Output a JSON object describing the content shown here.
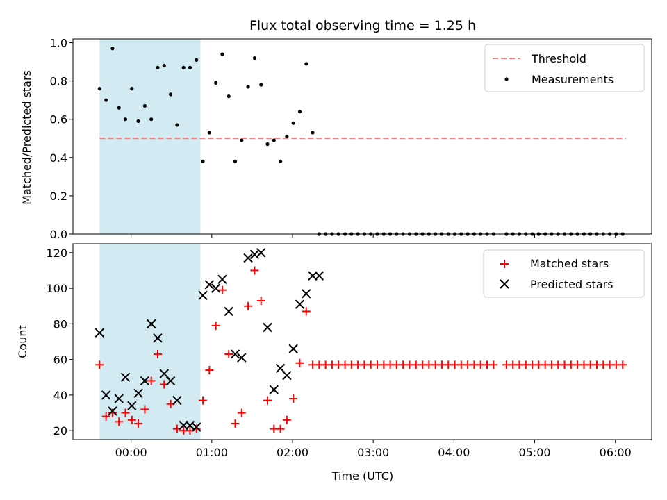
{
  "chart_data": [
    {
      "type": "scatter",
      "title": "Flux total observing time = 1.25 h",
      "xlabel": "",
      "ylabel": "Matched/Predicted stars",
      "xlim": [
        -0.72,
        6.45
      ],
      "ylim": [
        0.0,
        1.02
      ],
      "xticks": [
        0,
        1,
        2,
        3,
        4,
        5,
        6
      ],
      "xtick_labels": [
        "",
        "",
        "",
        "",
        "",
        "",
        ""
      ],
      "yticks": [
        0.0,
        0.2,
        0.4,
        0.6,
        0.8,
        1.0
      ],
      "ytick_labels": [
        "0.0",
        "0.2",
        "0.4",
        "0.6",
        "0.8",
        "1.0"
      ],
      "shaded_span": [
        -0.39,
        0.86
      ],
      "threshold": {
        "label": "Threshold",
        "y": 0.5,
        "x_range": [
          -0.39,
          6.13
        ],
        "color": "#ff7f7f"
      },
      "series": [
        {
          "name": "Measurements",
          "color": "#000000",
          "x": [
            -0.39,
            -0.31,
            -0.23,
            -0.15,
            -0.07,
            0.01,
            0.09,
            0.17,
            0.25,
            0.33,
            0.41,
            0.49,
            0.57,
            0.65,
            0.73,
            0.81,
            0.89,
            0.97,
            1.05,
            1.13,
            1.21,
            1.29,
            1.37,
            1.45,
            1.53,
            1.61,
            1.69,
            1.77,
            1.85,
            1.93,
            2.01,
            2.09,
            2.17,
            2.25,
            2.33,
            2.41,
            2.49,
            2.57,
            2.65,
            2.73,
            2.81,
            2.89,
            2.97,
            3.05,
            3.13,
            3.21,
            3.29,
            3.37,
            3.45,
            3.53,
            3.61,
            3.69,
            3.77,
            3.85,
            3.93,
            4.01,
            4.09,
            4.17,
            4.25,
            4.33,
            4.41,
            4.49,
            4.65,
            4.73,
            4.81,
            4.89,
            4.97,
            5.05,
            5.13,
            5.21,
            5.29,
            5.37,
            5.45,
            5.53,
            5.61,
            5.69,
            5.77,
            5.85,
            5.93,
            6.01,
            6.09
          ],
          "y": [
            0.76,
            0.7,
            0.97,
            0.66,
            0.6,
            0.76,
            0.59,
            0.67,
            0.6,
            0.87,
            0.88,
            0.73,
            0.57,
            0.87,
            0.87,
            0.91,
            0.38,
            0.53,
            0.79,
            0.94,
            0.72,
            0.38,
            0.49,
            0.77,
            0.92,
            0.78,
            0.47,
            0.49,
            0.38,
            0.51,
            0.58,
            0.64,
            0.89,
            0.53,
            0.0,
            0.0,
            0.0,
            0.0,
            0.0,
            0.0,
            0.0,
            0.0,
            0.0,
            0.0,
            0.0,
            0.0,
            0.0,
            0.0,
            0.0,
            0.0,
            0.0,
            0.0,
            0.0,
            0.0,
            0.0,
            0.0,
            0.0,
            0.0,
            0.0,
            0.0,
            0.0,
            0.0,
            0.0,
            0.0,
            0.0,
            0.0,
            0.0,
            0.0,
            0.0,
            0.0,
            0.0,
            0.0,
            0.0,
            0.0,
            0.0,
            0.0,
            0.0,
            0.0,
            0.0,
            0.0,
            0.0
          ]
        }
      ],
      "legend": {
        "position": "top-right",
        "entries": [
          "Threshold",
          "Measurements"
        ]
      }
    },
    {
      "type": "scatter",
      "title": "",
      "xlabel": "Time (UTC)",
      "ylabel": "Count",
      "xlim": [
        -0.72,
        6.45
      ],
      "ylim": [
        15,
        125
      ],
      "xticks": [
        0,
        1,
        2,
        3,
        4,
        5,
        6
      ],
      "xtick_labels": [
        "00:00",
        "01:00",
        "02:00",
        "03:00",
        "04:00",
        "05:00",
        "06:00"
      ],
      "yticks": [
        20,
        40,
        60,
        80,
        100,
        120
      ],
      "ytick_labels": [
        "20",
        "40",
        "60",
        "80",
        "100",
        "120"
      ],
      "shaded_span": [
        -0.39,
        0.86
      ],
      "series": [
        {
          "name": "Matched stars",
          "marker": "plus",
          "color": "#ff0000",
          "x": [
            -0.39,
            -0.31,
            -0.23,
            -0.15,
            -0.07,
            0.01,
            0.09,
            0.17,
            0.25,
            0.33,
            0.41,
            0.49,
            0.57,
            0.65,
            0.73,
            0.81,
            0.89,
            0.97,
            1.05,
            1.13,
            1.21,
            1.29,
            1.37,
            1.45,
            1.53,
            1.61,
            1.69,
            1.77,
            1.85,
            1.93,
            2.01,
            2.09,
            2.17,
            2.25,
            2.33,
            2.41,
            2.49,
            2.57,
            2.65,
            2.73,
            2.81,
            2.89,
            2.97,
            3.05,
            3.13,
            3.21,
            3.29,
            3.37,
            3.45,
            3.53,
            3.61,
            3.69,
            3.77,
            3.85,
            3.93,
            4.01,
            4.09,
            4.17,
            4.25,
            4.33,
            4.41,
            4.49,
            4.65,
            4.73,
            4.81,
            4.89,
            4.97,
            5.05,
            5.13,
            5.21,
            5.29,
            5.37,
            5.45,
            5.53,
            5.61,
            5.69,
            5.77,
            5.85,
            5.93,
            6.01,
            6.09
          ],
          "y": [
            57,
            28,
            30,
            25,
            30,
            26,
            24,
            32,
            48,
            63,
            46,
            35,
            21,
            20,
            20,
            21,
            37,
            54,
            79,
            99,
            63,
            24,
            30,
            90,
            110,
            93,
            37,
            21,
            21,
            26,
            38,
            58,
            87,
            57,
            57,
            57,
            57,
            57,
            57,
            57,
            57,
            57,
            57,
            57,
            57,
            57,
            57,
            57,
            57,
            57,
            57,
            57,
            57,
            57,
            57,
            57,
            57,
            57,
            57,
            57,
            57,
            57,
            57,
            57,
            57,
            57,
            57,
            57,
            57,
            57,
            57,
            57,
            57,
            57,
            57,
            57,
            57,
            57,
            57,
            57,
            57
          ]
        },
        {
          "name": "Predicted stars",
          "marker": "x",
          "color": "#000000",
          "x": [
            -0.39,
            -0.31,
            -0.23,
            -0.15,
            -0.07,
            0.01,
            0.09,
            0.17,
            0.25,
            0.33,
            0.41,
            0.49,
            0.57,
            0.65,
            0.73,
            0.81,
            0.89,
            0.97,
            1.05,
            1.13,
            1.21,
            1.29,
            1.37,
            1.45,
            1.53,
            1.61,
            1.69,
            1.77,
            1.85,
            1.93,
            2.01,
            2.09,
            2.17,
            2.25,
            2.33
          ],
          "y": [
            75,
            40,
            31,
            38,
            50,
            34,
            41,
            48,
            80,
            72,
            52,
            48,
            37,
            23,
            23,
            22,
            96,
            102,
            100,
            105,
            87,
            63,
            61,
            117,
            119,
            120,
            78,
            43,
            55,
            51,
            66,
            91,
            97,
            107,
            107
          ]
        }
      ],
      "legend": {
        "position": "top-right",
        "entries": [
          "Matched stars",
          "Predicted stars"
        ]
      }
    }
  ],
  "colors": {
    "span": "#add8e6",
    "threshold": "#ff7f7f",
    "matched": "#ff0000",
    "predicted": "#000000",
    "measurement": "#000000"
  }
}
